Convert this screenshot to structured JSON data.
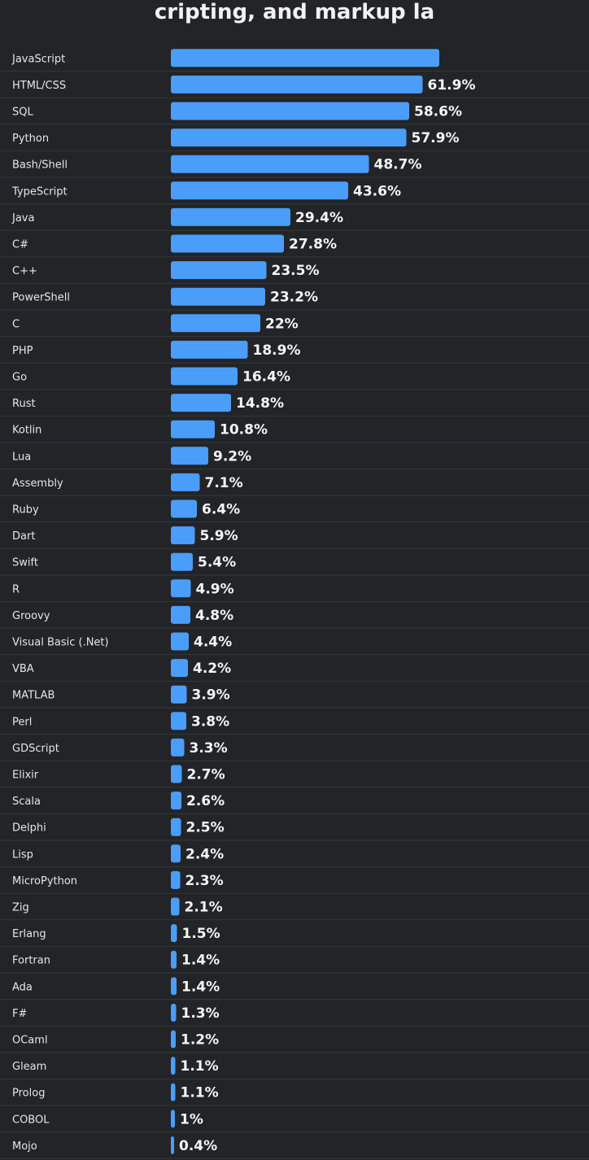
{
  "title": "cripting, and markup la",
  "chart_data": {
    "type": "bar",
    "orientation": "horizontal",
    "title": "cripting, and markup la",
    "categories": [
      "JavaScript",
      "HTML/CSS",
      "SQL",
      "Python",
      "Bash/Shell",
      "TypeScript",
      "Java",
      "C#",
      "C++",
      "PowerShell",
      "C",
      "PHP",
      "Go",
      "Rust",
      "Kotlin",
      "Lua",
      "Assembly",
      "Ruby",
      "Dart",
      "Swift",
      "R",
      "Groovy",
      "Visual Basic (.Net)",
      "VBA",
      "MATLAB",
      "Perl",
      "GDScript",
      "Elixir",
      "Scala",
      "Delphi",
      "Lisp",
      "MicroPython",
      "Zig",
      "Erlang",
      "Fortran",
      "Ada",
      "F#",
      "OCaml",
      "Gleam",
      "Prolog",
      "COBOL",
      "Mojo"
    ],
    "values": [
      66,
      61.9,
      58.6,
      57.9,
      48.7,
      43.6,
      29.4,
      27.8,
      23.5,
      23.2,
      22,
      18.9,
      16.4,
      14.8,
      10.8,
      9.2,
      7.1,
      6.4,
      5.9,
      5.4,
      4.9,
      4.8,
      4.4,
      4.2,
      3.9,
      3.8,
      3.3,
      2.7,
      2.6,
      2.5,
      2.4,
      2.3,
      2.1,
      1.5,
      1.4,
      1.4,
      1.3,
      1.2,
      1.1,
      1.1,
      1,
      0.4
    ],
    "value_labels": [
      "",
      "61.9%",
      "58.6%",
      "57.9%",
      "48.7%",
      "43.6%",
      "29.4%",
      "27.8%",
      "23.5%",
      "23.2%",
      "22%",
      "18.9%",
      "16.4%",
      "14.8%",
      "10.8%",
      "9.2%",
      "7.1%",
      "6.4%",
      "5.9%",
      "5.4%",
      "4.9%",
      "4.8%",
      "4.4%",
      "4.2%",
      "3.9%",
      "3.8%",
      "3.3%",
      "2.7%",
      "2.6%",
      "2.5%",
      "2.4%",
      "2.3%",
      "2.1%",
      "1.5%",
      "1.4%",
      "1.4%",
      "1.3%",
      "1.2%",
      "1.1%",
      "1.1%",
      "1%",
      "0.4%"
    ],
    "unit": "%",
    "grid": false,
    "legend": "none",
    "colors": {
      "bar": "#4a9df8",
      "background": "#232428"
    }
  }
}
